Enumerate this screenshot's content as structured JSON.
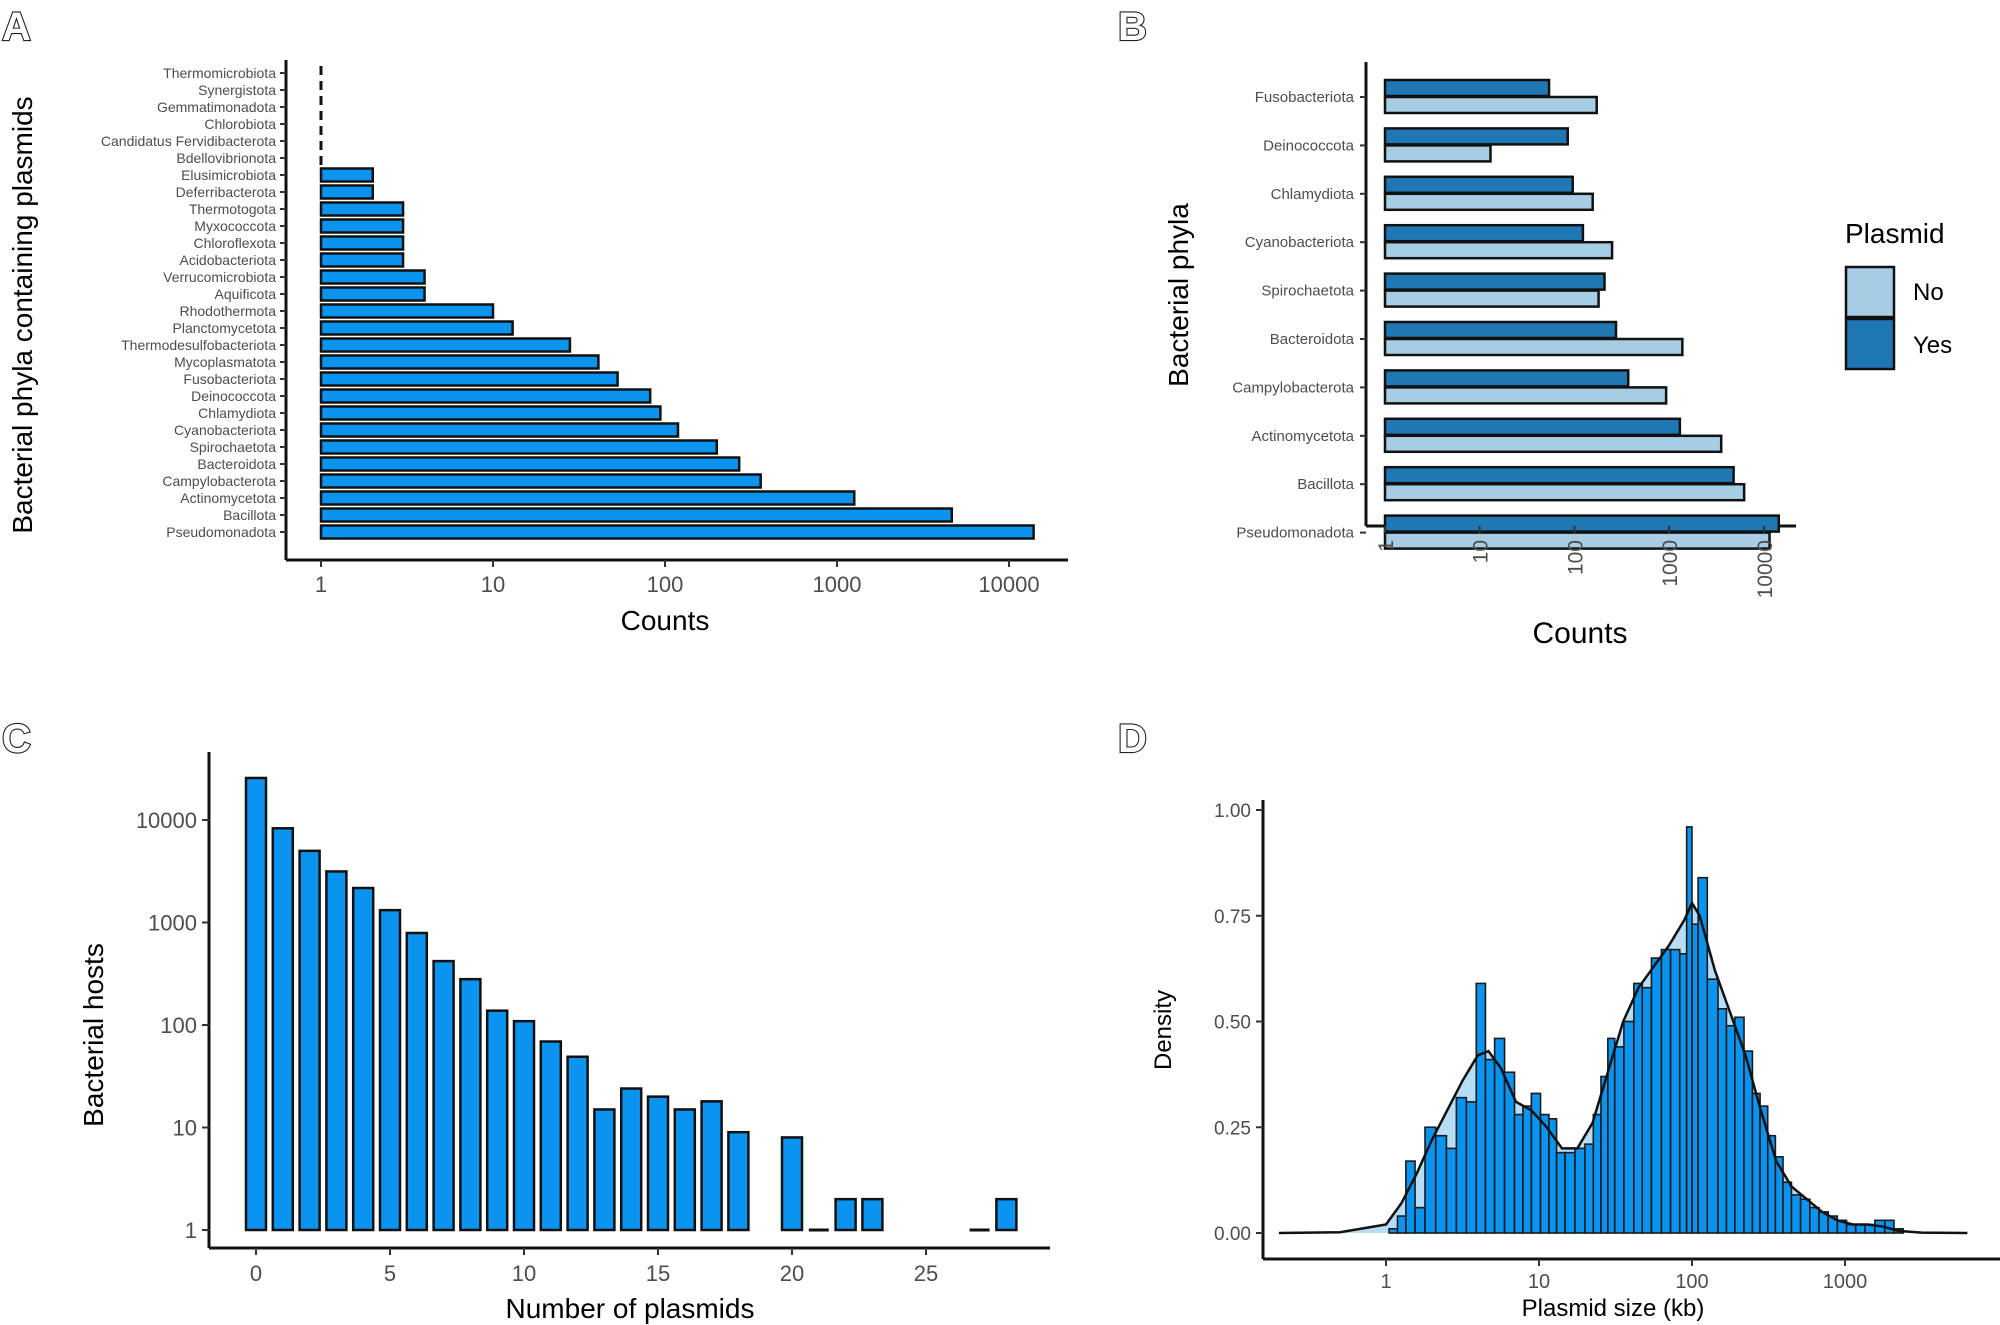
{
  "chart_data": [
    {
      "panel": "A",
      "type": "bar",
      "orientation": "horizontal",
      "ylabel": "Bacterial phyla containing plasmids",
      "xlabel": "Counts",
      "xscale": "log10",
      "xlim": [
        1,
        25000
      ],
      "xticks": [
        "1",
        "10",
        "100",
        "1000",
        "10000"
      ],
      "bar_color": "#0a93ef",
      "reference_line": {
        "x": 1,
        "style": "dashed"
      },
      "categories": [
        "Thermomicrobiota",
        "Synergistota",
        "Gemmatimonadota",
        "Chlorobiota",
        "Candidatus Fervidibacterota",
        "Bdellovibrionota",
        "Elusimicrobiota",
        "Deferribacterota",
        "Thermotogota",
        "Myxococcota",
        "Chloroflexota",
        "Acidobacteriota",
        "Verrucomicrobiota",
        "Aquificota",
        "Rhodothermota",
        "Planctomycetota",
        "Thermodesulfobacteriota",
        "Mycoplasmatota",
        "Fusobacteriota",
        "Deinococcota",
        "Chlamydiota",
        "Cyanobacteriota",
        "Spirochaetota",
        "Bacteroidota",
        "Campylobacterota",
        "Actinomycetota",
        "Bacillota",
        "Pseudomonadota"
      ],
      "values": [
        1,
        1,
        1,
        1,
        1,
        1,
        2,
        2,
        3,
        3,
        3,
        3,
        4,
        4,
        10,
        13,
        28,
        41,
        53,
        82,
        94,
        119,
        200,
        270,
        360,
        1260,
        4650,
        13900
      ]
    },
    {
      "panel": "B",
      "type": "bar",
      "orientation": "horizontal",
      "ylabel": "Bacterial phyla",
      "xlabel": "Counts",
      "xscale": "log10",
      "xlim": [
        1,
        25000
      ],
      "xticks": [
        "1",
        "10",
        "100",
        "1000",
        "10000"
      ],
      "legend": {
        "title": "Plasmid",
        "position": "right",
        "entries": [
          {
            "label": "No",
            "color": "#a6cde3"
          },
          {
            "label": "Yes",
            "color": "#1f78b4"
          }
        ]
      },
      "categories": [
        "Fusobacteriota",
        "Deinococcota",
        "Chlamydiota",
        "Cyanobacteriota",
        "Spirochaetota",
        "Bacteroidota",
        "Campylobacterota",
        "Actinomycetota",
        "Bacillota",
        "Pseudomonadota"
      ],
      "series": [
        {
          "name": "Yes",
          "color": "#1f78b4",
          "values": [
            54,
            85,
            96,
            123,
            208,
            275,
            370,
            1300,
            4800,
            14400
          ]
        },
        {
          "name": "No",
          "color": "#a6cde3",
          "values": [
            172,
            13,
            156,
            250,
            180,
            1380,
            930,
            3550,
            6200,
            11500
          ]
        }
      ]
    },
    {
      "panel": "C",
      "type": "bar",
      "xlabel": "Number of plasmids",
      "ylabel": "Bacterial hosts",
      "yscale": "log10",
      "ylim": [
        1,
        30000
      ],
      "yticks": [
        "1",
        "10",
        "100",
        "1000",
        "10000"
      ],
      "xticks": [
        "0",
        "5",
        "10",
        "15",
        "20",
        "25"
      ],
      "bar_color": "#0a93ef",
      "x": [
        0,
        1,
        2,
        3,
        4,
        5,
        6,
        7,
        8,
        9,
        10,
        11,
        12,
        13,
        14,
        15,
        16,
        17,
        18,
        20,
        21,
        22,
        23,
        27,
        28
      ],
      "values": [
        25700,
        8300,
        5000,
        3150,
        2170,
        1320,
        790,
        420,
        280,
        138,
        109,
        69,
        49,
        15,
        24,
        20,
        15,
        18,
        9,
        8,
        1,
        2,
        2,
        1,
        2
      ]
    },
    {
      "panel": "D",
      "type": "histogram",
      "xlabel": "Plasmid size (kb)",
      "ylabel": "Density",
      "xscale": "log10",
      "xticks": [
        "1",
        "10",
        "100",
        "1000"
      ],
      "yticks": [
        "0.00",
        "0.25",
        "0.50",
        "0.75",
        "1.00"
      ],
      "ylim": [
        0,
        1.0
      ],
      "bar_color": "#0a93ef",
      "density_fill": "#b7dcf5",
      "bins_log10_kb": [
        0.05,
        0.1,
        0.16,
        0.22,
        0.29,
        0.36,
        0.43,
        0.49,
        0.56,
        0.62,
        0.68,
        0.74,
        0.81,
        0.87,
        0.92,
        0.98,
        1.04,
        1.09,
        1.14,
        1.2,
        1.27,
        1.33,
        1.38,
        1.43,
        1.47,
        1.52,
        1.59,
        1.65,
        1.7,
        1.77,
        1.83,
        1.89,
        1.95,
        1.98,
        2.02,
        2.06,
        2.14,
        2.2,
        2.25,
        2.31,
        2.37,
        2.42,
        2.47,
        2.52,
        2.57,
        2.62,
        2.68,
        2.74,
        2.8,
        2.86,
        2.92,
        2.98,
        3.04,
        3.1,
        3.16,
        3.23,
        3.29,
        3.35
      ],
      "density_values": [
        0.01,
        0.04,
        0.17,
        0.06,
        0.25,
        0.23,
        0.2,
        0.32,
        0.31,
        0.59,
        0.41,
        0.46,
        0.38,
        0.28,
        0.3,
        0.33,
        0.28,
        0.27,
        0.19,
        0.19,
        0.2,
        0.21,
        0.28,
        0.37,
        0.46,
        0.44,
        0.5,
        0.59,
        0.58,
        0.65,
        0.67,
        0.67,
        0.66,
        0.96,
        0.73,
        0.84,
        0.6,
        0.53,
        0.49,
        0.51,
        0.43,
        0.33,
        0.3,
        0.23,
        0.18,
        0.12,
        0.09,
        0.08,
        0.06,
        0.05,
        0.04,
        0.03,
        0.02,
        0.02,
        0.02,
        0.03,
        0.03,
        0.01
      ],
      "kde_log10_kb": [
        -0.7,
        -0.3,
        0.0,
        0.1,
        0.2,
        0.3,
        0.4,
        0.5,
        0.6,
        0.67,
        0.75,
        0.85,
        0.95,
        1.05,
        1.15,
        1.25,
        1.35,
        1.45,
        1.55,
        1.65,
        1.75,
        1.85,
        1.95,
        2.0,
        2.05,
        2.15,
        2.25,
        2.35,
        2.45,
        2.55,
        2.65,
        2.75,
        2.85,
        2.95,
        3.05,
        3.15,
        3.25,
        3.35,
        3.5,
        3.8
      ],
      "kde_values": [
        0.0,
        0.002,
        0.02,
        0.07,
        0.14,
        0.22,
        0.29,
        0.36,
        0.42,
        0.43,
        0.39,
        0.31,
        0.29,
        0.25,
        0.2,
        0.2,
        0.26,
        0.38,
        0.5,
        0.58,
        0.63,
        0.68,
        0.74,
        0.78,
        0.75,
        0.62,
        0.52,
        0.42,
        0.29,
        0.17,
        0.11,
        0.08,
        0.05,
        0.03,
        0.02,
        0.02,
        0.015,
        0.005,
        0.001,
        0.0
      ]
    }
  ],
  "panel_labels": [
    "A",
    "B",
    "C",
    "D"
  ]
}
